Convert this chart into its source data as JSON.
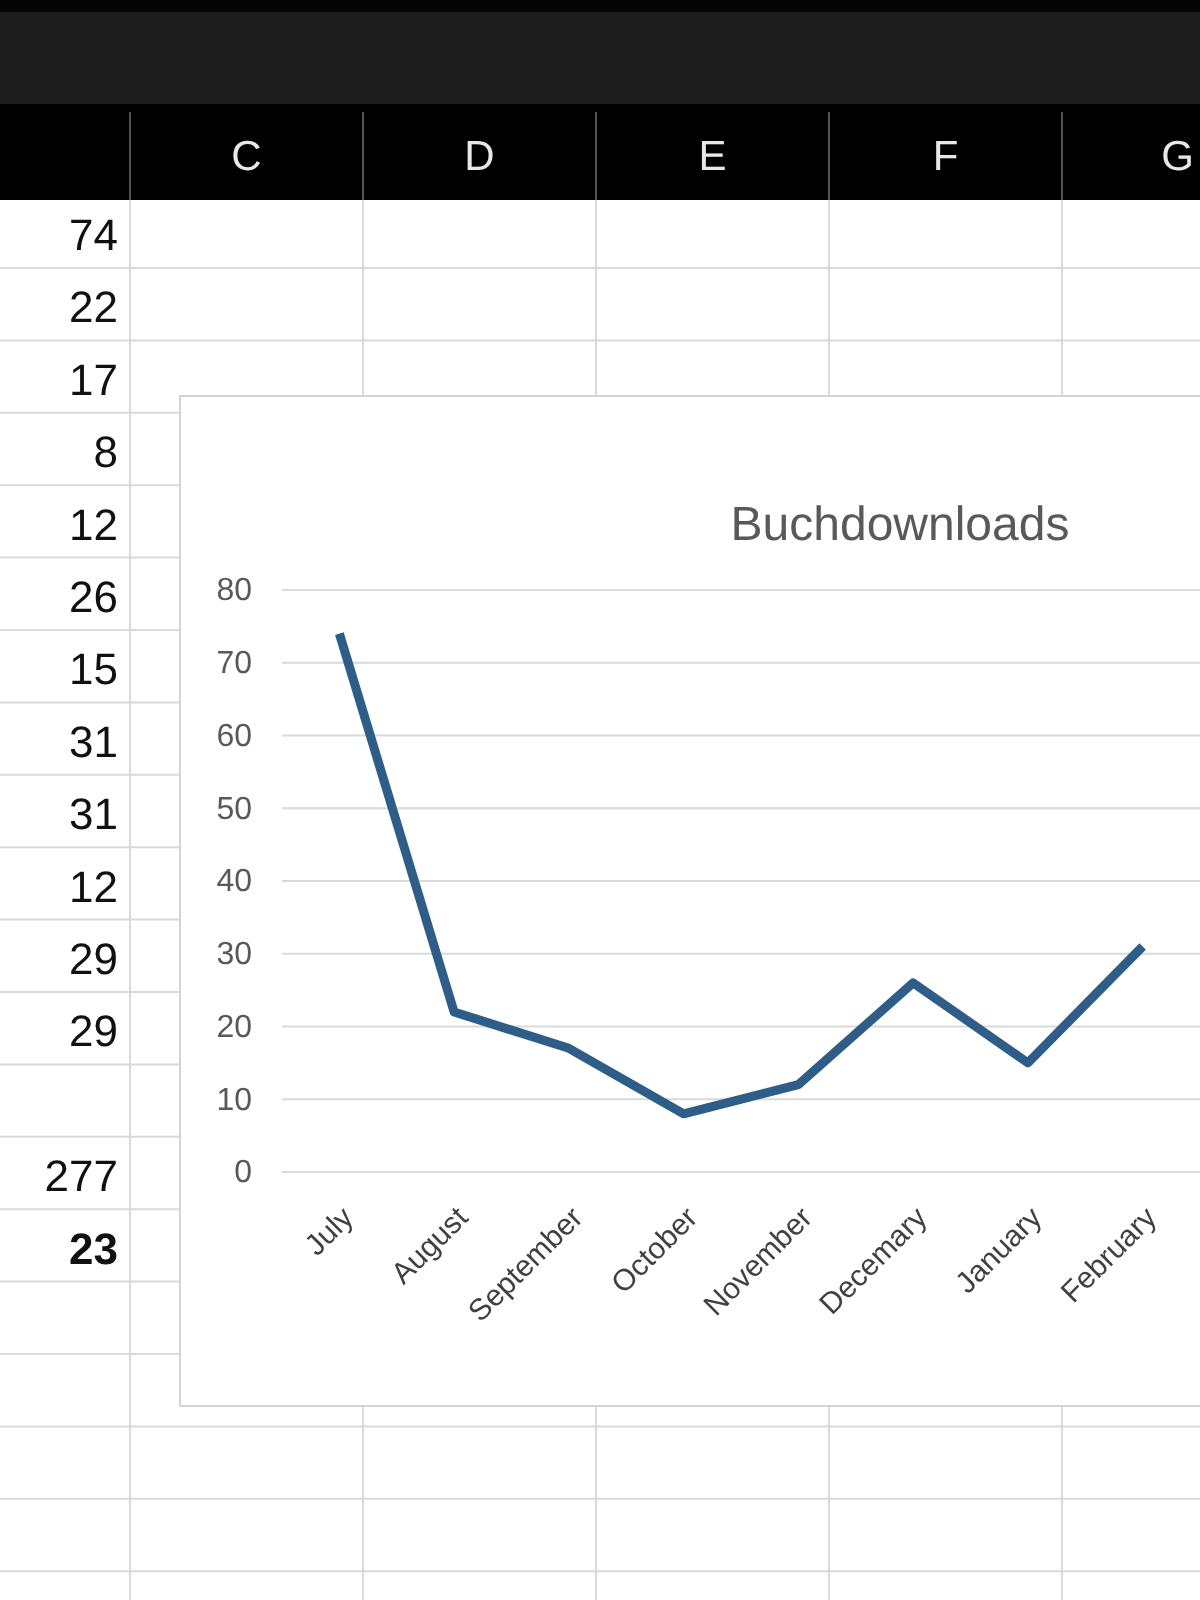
{
  "chart_data": [
    {
      "type": "other",
      "categories": [
        "C",
        "D",
        "E",
        "F",
        "G"
      ],
      "annotations": [
        "74",
        "22",
        "17",
        "8",
        "12",
        "26",
        "15",
        "31",
        "31",
        "12",
        "29",
        "29",
        "277",
        "23"
      ]
    },
    {
      "type": "line",
      "title": "Buchdownloads",
      "categories": [
        "July",
        "August",
        "September",
        "October",
        "November",
        "Decemary",
        "January",
        "February"
      ],
      "values": [
        74,
        22,
        17,
        8,
        12,
        26,
        15,
        31
      ],
      "color": "#2e5d87",
      "ylim": [
        0,
        80
      ],
      "yticks": [
        0,
        10,
        20,
        30,
        40,
        50,
        60,
        70,
        80
      ],
      "grid": "y"
    }
  ]
}
